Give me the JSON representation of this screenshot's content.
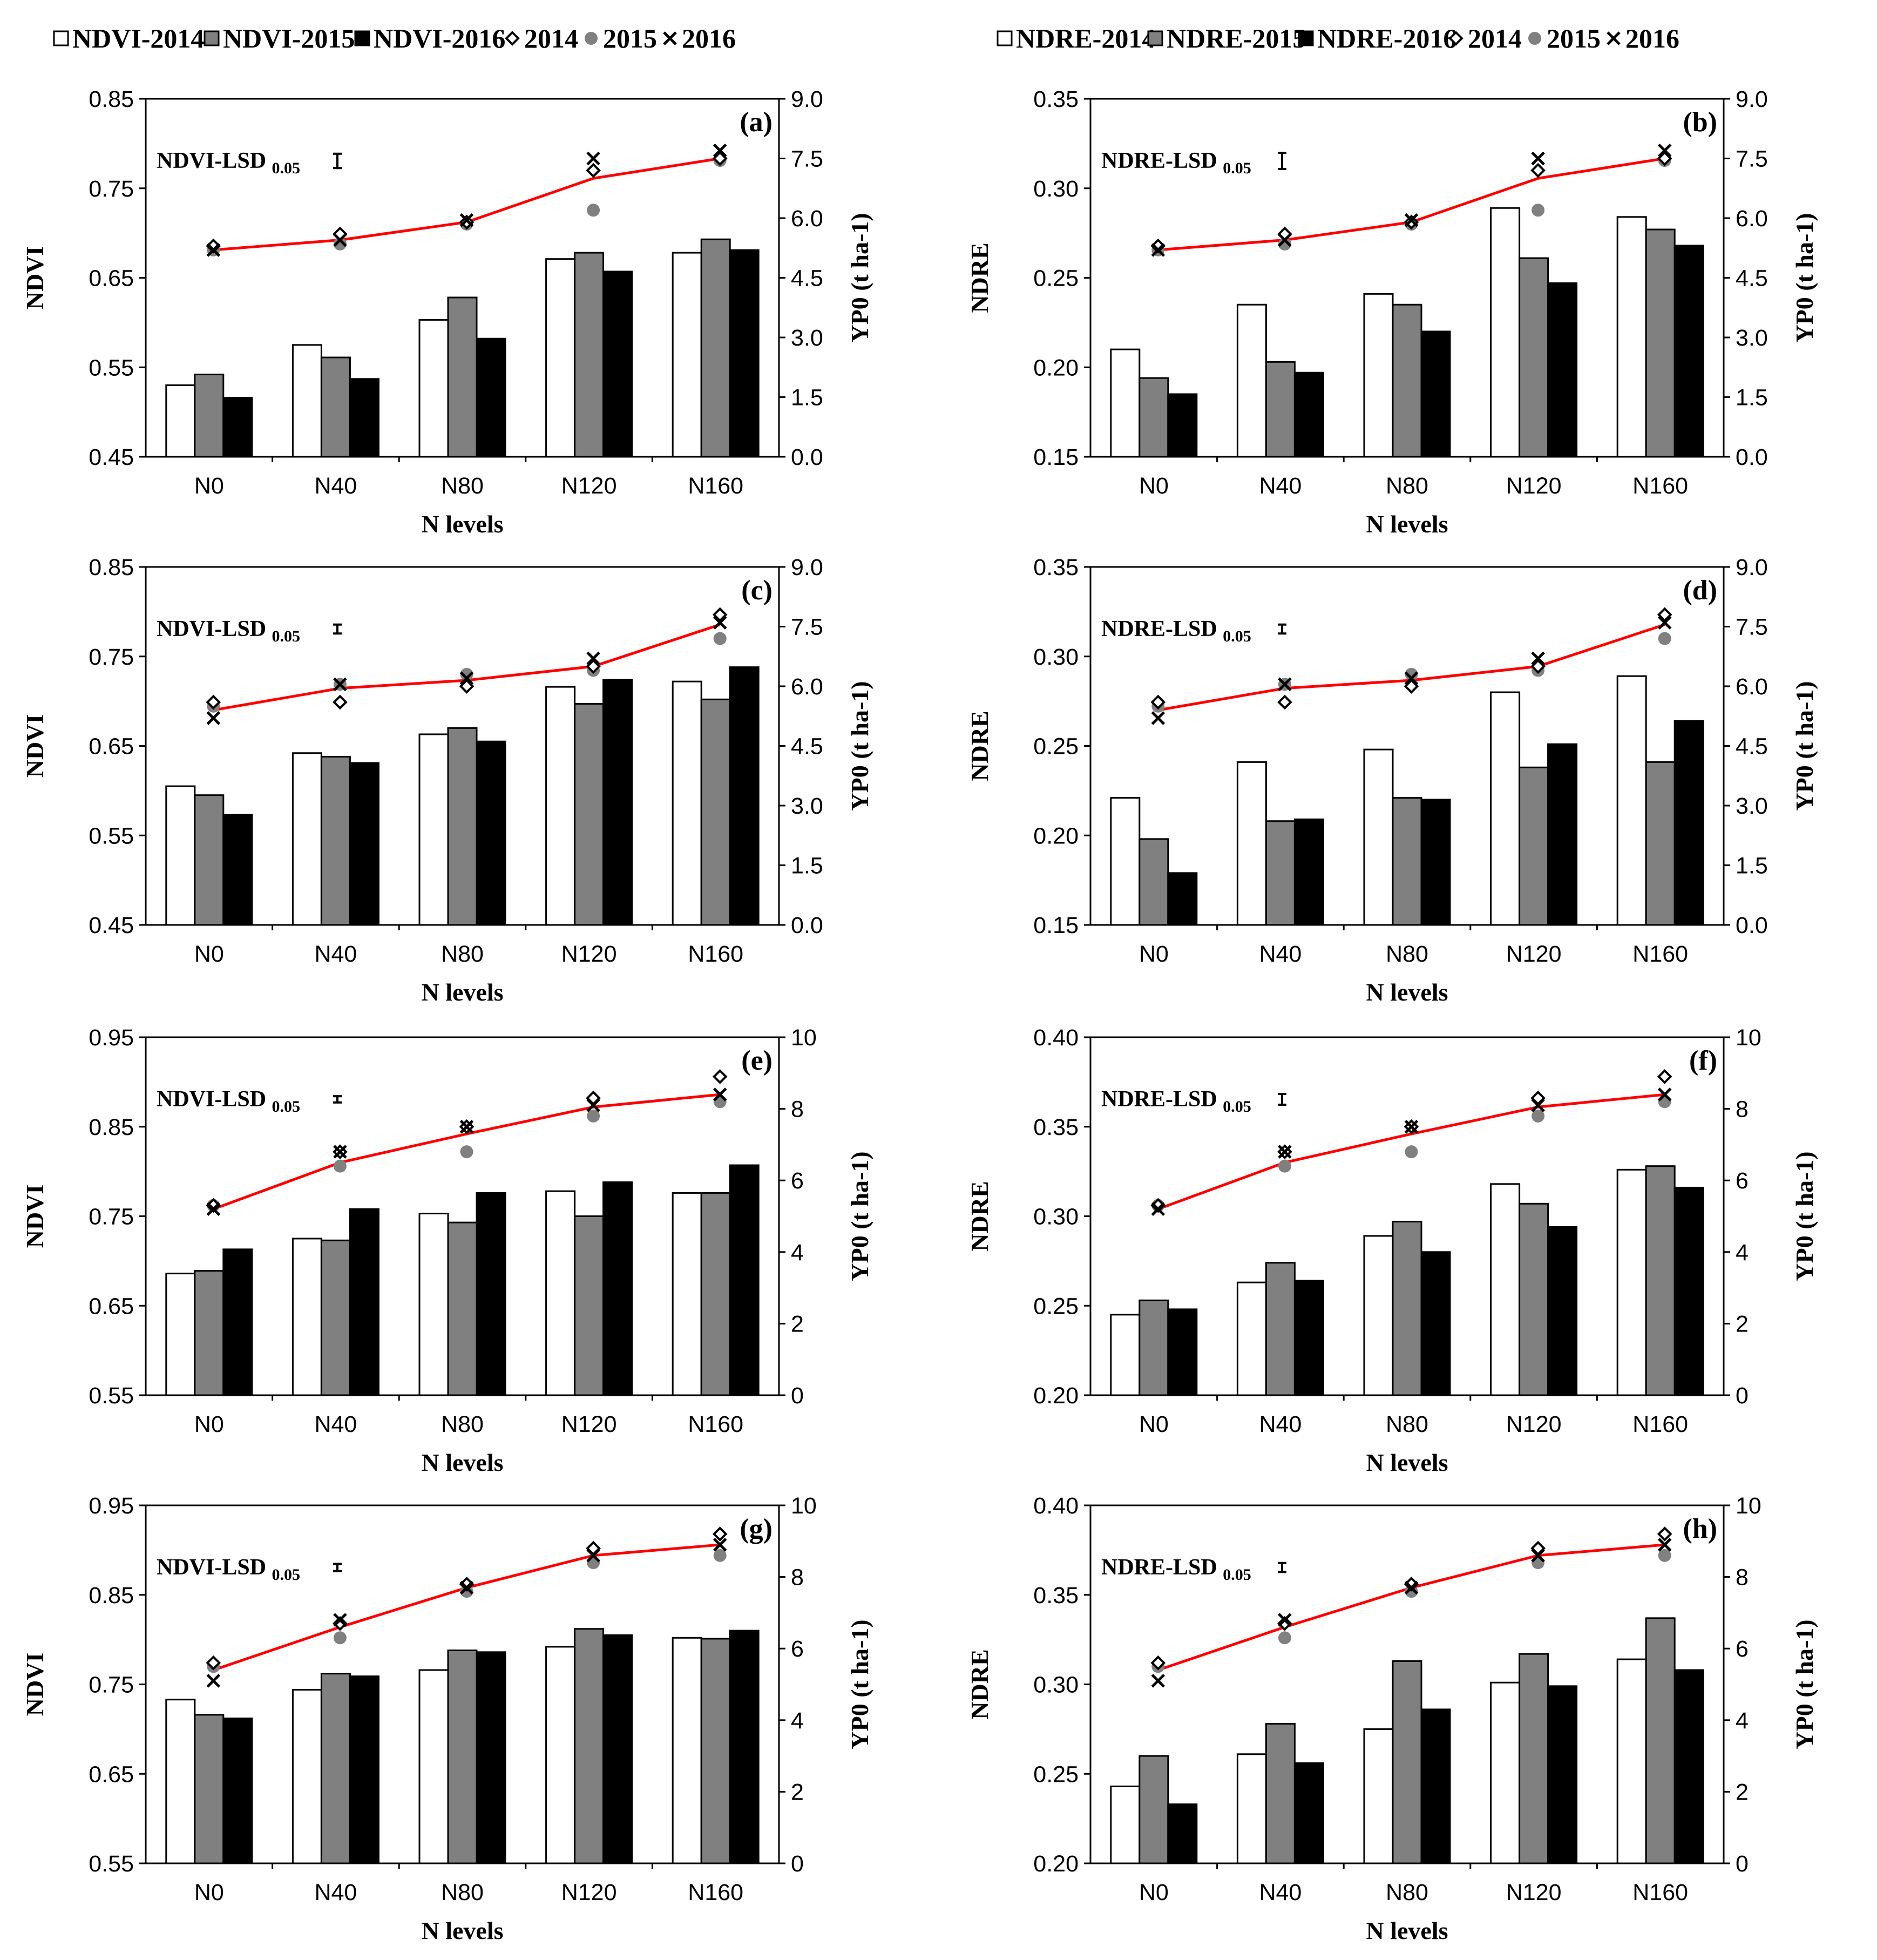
{
  "legends": {
    "left": [
      "NDVI-2014",
      "NDVI-2015",
      "NDVI-2016",
      "2014",
      "2015",
      "2016"
    ],
    "right": [
      "NDRE-2014",
      "NDRE-2015",
      "NDRE-2016",
      "2014",
      "2015",
      "2016"
    ]
  },
  "colors": {
    "bar_2014": "#ffffff",
    "bar_2015": "#808080",
    "bar_2016": "#000000",
    "marker_2015": "#808080",
    "line": "#ff0000"
  },
  "chart_data": [
    {
      "type": "bar",
      "panel": "(a)",
      "ylabel": "NDVI",
      "y2label": "YP0 (t ha-1)",
      "xlabel": "N levels",
      "lsd_label": "NDVI-LSD",
      "lsd_sub": "0.05",
      "lsd_value": 0.016,
      "categories": [
        "N0",
        "N40",
        "N80",
        "N120",
        "N160"
      ],
      "ylim": [
        0.45,
        0.85
      ],
      "yticks": [
        "0.45",
        "0.55",
        "0.65",
        "0.75",
        "0.85"
      ],
      "y2lim": [
        0,
        9
      ],
      "y2ticks": [
        "0.0",
        "1.5",
        "3.0",
        "4.5",
        "6.0",
        "7.5",
        "9.0"
      ],
      "series": [
        {
          "name": "NDVI-2014",
          "values": [
            0.53,
            0.575,
            0.603,
            0.671,
            0.678
          ]
        },
        {
          "name": "NDVI-2015",
          "values": [
            0.542,
            0.561,
            0.628,
            0.678,
            0.693
          ]
        },
        {
          "name": "NDVI-2016",
          "values": [
            0.516,
            0.537,
            0.582,
            0.657,
            0.681
          ]
        }
      ],
      "yp0": {
        "2014": [
          5.3,
          5.6,
          5.9,
          7.2,
          7.5
        ],
        "2015": [
          5.2,
          5.35,
          5.85,
          6.2,
          7.45
        ],
        "2016": [
          5.2,
          5.45,
          5.95,
          7.5,
          7.7
        ]
      },
      "yp0_line": [
        5.2,
        5.45,
        5.9,
        7.0,
        7.5
      ]
    },
    {
      "type": "bar",
      "panel": "(b)",
      "ylabel": "NDRE",
      "y2label": "YP0 (t ha-1)",
      "xlabel": "N levels",
      "lsd_label": "NDRE-LSD",
      "lsd_sub": "0.05",
      "lsd_value": 0.009,
      "categories": [
        "N0",
        "N40",
        "N80",
        "N120",
        "N160"
      ],
      "ylim": [
        0.15,
        0.35
      ],
      "yticks": [
        "0.15",
        "0.20",
        "0.25",
        "0.30",
        "0.35"
      ],
      "y2lim": [
        0,
        9
      ],
      "y2ticks": [
        "0.0",
        "1.5",
        "3.0",
        "4.5",
        "6.0",
        "7.5",
        "9.0"
      ],
      "series": [
        {
          "name": "NDRE-2014",
          "values": [
            0.21,
            0.235,
            0.241,
            0.289,
            0.284
          ]
        },
        {
          "name": "NDRE-2015",
          "values": [
            0.194,
            0.203,
            0.235,
            0.261,
            0.277
          ]
        },
        {
          "name": "NDRE-2016",
          "values": [
            0.185,
            0.197,
            0.22,
            0.247,
            0.268
          ]
        }
      ],
      "yp0": {
        "2014": [
          5.3,
          5.6,
          5.9,
          7.2,
          7.5
        ],
        "2015": [
          5.2,
          5.35,
          5.85,
          6.2,
          7.45
        ],
        "2016": [
          5.2,
          5.45,
          5.95,
          7.5,
          7.7
        ]
      },
      "yp0_line": [
        5.2,
        5.45,
        5.9,
        7.0,
        7.5
      ]
    },
    {
      "type": "bar",
      "panel": "(c)",
      "ylabel": "NDVI",
      "y2label": "YP0 (t ha-1)",
      "xlabel": "N levels",
      "lsd_label": "NDVI-LSD",
      "lsd_sub": "0.05",
      "lsd_value": 0.01,
      "categories": [
        "N0",
        "N40",
        "N80",
        "N120",
        "N160"
      ],
      "ylim": [
        0.45,
        0.85
      ],
      "yticks": [
        "0.45",
        "0.55",
        "0.65",
        "0.75",
        "0.85"
      ],
      "y2lim": [
        0,
        9
      ],
      "y2ticks": [
        "0.0",
        "1.5",
        "3.0",
        "4.5",
        "6.0",
        "7.5",
        "9.0"
      ],
      "series": [
        {
          "name": "NDVI-2014",
          "values": [
            0.605,
            0.642,
            0.663,
            0.716,
            0.722
          ]
        },
        {
          "name": "NDVI-2015",
          "values": [
            0.595,
            0.638,
            0.67,
            0.697,
            0.702
          ]
        },
        {
          "name": "NDVI-2016",
          "values": [
            0.573,
            0.631,
            0.655,
            0.724,
            0.738
          ]
        }
      ],
      "yp0": {
        "2014": [
          5.6,
          5.6,
          6.0,
          6.5,
          7.8
        ],
        "2015": [
          5.5,
          6.05,
          6.3,
          6.4,
          7.2
        ],
        "2016": [
          5.2,
          6.05,
          6.2,
          6.7,
          7.6
        ]
      },
      "yp0_line": [
        5.4,
        5.95,
        6.15,
        6.5,
        7.55
      ]
    },
    {
      "type": "bar",
      "panel": "(d)",
      "ylabel": "NDRE",
      "y2label": "YP0 (t ha-1)",
      "xlabel": "N levels",
      "lsd_label": "NDRE-LSD",
      "lsd_sub": "0.05",
      "lsd_value": 0.005,
      "categories": [
        "N0",
        "N40",
        "N80",
        "N120",
        "N160"
      ],
      "ylim": [
        0.15,
        0.35
      ],
      "yticks": [
        "0.15",
        "0.20",
        "0.25",
        "0.30",
        "0.35"
      ],
      "y2lim": [
        0,
        9
      ],
      "y2ticks": [
        "0.0",
        "1.5",
        "3.0",
        "4.5",
        "6.0",
        "7.5",
        "9.0"
      ],
      "series": [
        {
          "name": "NDRE-2014",
          "values": [
            0.221,
            0.241,
            0.248,
            0.28,
            0.289
          ]
        },
        {
          "name": "NDRE-2015",
          "values": [
            0.198,
            0.208,
            0.221,
            0.238,
            0.241
          ]
        },
        {
          "name": "NDRE-2016",
          "values": [
            0.179,
            0.209,
            0.22,
            0.251,
            0.264
          ]
        }
      ],
      "yp0": {
        "2014": [
          5.6,
          5.6,
          6.0,
          6.5,
          7.8
        ],
        "2015": [
          5.5,
          6.05,
          6.3,
          6.4,
          7.2
        ],
        "2016": [
          5.2,
          6.05,
          6.2,
          6.7,
          7.6
        ]
      },
      "yp0_line": [
        5.4,
        5.95,
        6.15,
        6.5,
        7.55
      ]
    },
    {
      "type": "bar",
      "panel": "(e)",
      "ylabel": "NDVI",
      "y2label": "YP0 (t ha-1)",
      "xlabel": "N levels",
      "lsd_label": "NDVI-LSD",
      "lsd_sub": "0.05",
      "lsd_value": 0.007,
      "categories": [
        "N0",
        "N40",
        "N80",
        "N120",
        "N160"
      ],
      "ylim": [
        0.55,
        0.95
      ],
      "yticks": [
        "0.55",
        "0.65",
        "0.75",
        "0.85",
        "0.95"
      ],
      "y2lim": [
        0,
        10
      ],
      "y2ticks": [
        "0",
        "2",
        "4",
        "6",
        "8",
        "10"
      ],
      "series": [
        {
          "name": "NDVI-2014",
          "values": [
            0.686,
            0.725,
            0.753,
            0.778,
            0.776
          ]
        },
        {
          "name": "NDVI-2015",
          "values": [
            0.689,
            0.723,
            0.743,
            0.75,
            0.776
          ]
        },
        {
          "name": "NDVI-2016",
          "values": [
            0.713,
            0.758,
            0.776,
            0.788,
            0.807
          ]
        }
      ],
      "yp0": {
        "2014": [
          5.3,
          6.8,
          7.5,
          8.3,
          8.9
        ],
        "2015": [
          5.3,
          6.4,
          6.8,
          7.8,
          8.2
        ],
        "2016": [
          5.2,
          6.8,
          7.5,
          8.1,
          8.4
        ]
      },
      "yp0_line": [
        5.2,
        6.5,
        7.3,
        8.05,
        8.4
      ]
    },
    {
      "type": "bar",
      "panel": "(f)",
      "ylabel": "NDRE",
      "y2label": "YP0 (t ha-1)",
      "xlabel": "N levels",
      "lsd_label": "NDRE-LSD",
      "lsd_sub": "0.05",
      "lsd_value": 0.006,
      "categories": [
        "N0",
        "N40",
        "N80",
        "N120",
        "N160"
      ],
      "ylim": [
        0.2,
        0.4
      ],
      "yticks": [
        "0.20",
        "0.25",
        "0.30",
        "0.35",
        "0.40"
      ],
      "y2lim": [
        0,
        10
      ],
      "y2ticks": [
        "0",
        "2",
        "4",
        "6",
        "8",
        "10"
      ],
      "series": [
        {
          "name": "NDRE-2014",
          "values": [
            0.245,
            0.263,
            0.289,
            0.318,
            0.326
          ]
        },
        {
          "name": "NDRE-2015",
          "values": [
            0.253,
            0.274,
            0.297,
            0.307,
            0.328
          ]
        },
        {
          "name": "NDRE-2016",
          "values": [
            0.248,
            0.264,
            0.28,
            0.294,
            0.316
          ]
        }
      ],
      "yp0": {
        "2014": [
          5.3,
          6.8,
          7.5,
          8.3,
          8.9
        ],
        "2015": [
          5.3,
          6.4,
          6.8,
          7.8,
          8.2
        ],
        "2016": [
          5.2,
          6.8,
          7.5,
          8.1,
          8.4
        ]
      },
      "yp0_line": [
        5.2,
        6.5,
        7.3,
        8.05,
        8.4
      ]
    },
    {
      "type": "bar",
      "panel": "(g)",
      "ylabel": "NDVI",
      "y2label": "YP0 (t ha-1)",
      "xlabel": "N levels",
      "lsd_label": "NDVI-LSD",
      "lsd_sub": "0.05",
      "lsd_value": 0.008,
      "categories": [
        "N0",
        "N40",
        "N80",
        "N120",
        "N160"
      ],
      "ylim": [
        0.55,
        0.95
      ],
      "yticks": [
        "0.55",
        "0.65",
        "0.75",
        "0.85",
        "0.95"
      ],
      "y2lim": [
        0,
        10
      ],
      "y2ticks": [
        "0",
        "2",
        "4",
        "6",
        "8",
        "10"
      ],
      "series": [
        {
          "name": "NDVI-2014",
          "values": [
            0.733,
            0.744,
            0.766,
            0.792,
            0.802
          ]
        },
        {
          "name": "NDVI-2015",
          "values": [
            0.716,
            0.762,
            0.788,
            0.812,
            0.801
          ]
        },
        {
          "name": "NDVI-2016",
          "values": [
            0.712,
            0.759,
            0.786,
            0.805,
            0.81
          ]
        }
      ],
      "yp0": {
        "2014": [
          5.6,
          6.7,
          7.8,
          8.8,
          9.2
        ],
        "2015": [
          5.5,
          6.3,
          7.6,
          8.4,
          8.6
        ],
        "2016": [
          5.1,
          6.8,
          7.7,
          8.6,
          8.9
        ]
      },
      "yp0_line": [
        5.4,
        6.6,
        7.7,
        8.6,
        8.9
      ]
    },
    {
      "type": "bar",
      "panel": "(h)",
      "ylabel": "NDRE",
      "y2label": "YP0 (t ha-1)",
      "xlabel": "N levels",
      "lsd_label": "NDRE-LSD",
      "lsd_sub": "0.05",
      "lsd_value": 0.005,
      "categories": [
        "N0",
        "N40",
        "N80",
        "N120",
        "N160"
      ],
      "ylim": [
        0.2,
        0.4
      ],
      "yticks": [
        "0.20",
        "0.25",
        "0.30",
        "0.35",
        "0.40"
      ],
      "y2lim": [
        0,
        10
      ],
      "y2ticks": [
        "0",
        "2",
        "4",
        "6",
        "8",
        "10"
      ],
      "series": [
        {
          "name": "NDRE-2014",
          "values": [
            0.243,
            0.261,
            0.275,
            0.301,
            0.314
          ]
        },
        {
          "name": "NDRE-2015",
          "values": [
            0.26,
            0.278,
            0.313,
            0.317,
            0.337
          ]
        },
        {
          "name": "NDRE-2016",
          "values": [
            0.233,
            0.256,
            0.286,
            0.299,
            0.308
          ]
        }
      ],
      "yp0": {
        "2014": [
          5.6,
          6.7,
          7.8,
          8.8,
          9.2
        ],
        "2015": [
          5.5,
          6.3,
          7.6,
          8.4,
          8.6
        ],
        "2016": [
          5.1,
          6.8,
          7.7,
          8.6,
          8.9
        ]
      },
      "yp0_line": [
        5.4,
        6.6,
        7.7,
        8.6,
        8.9
      ]
    }
  ]
}
